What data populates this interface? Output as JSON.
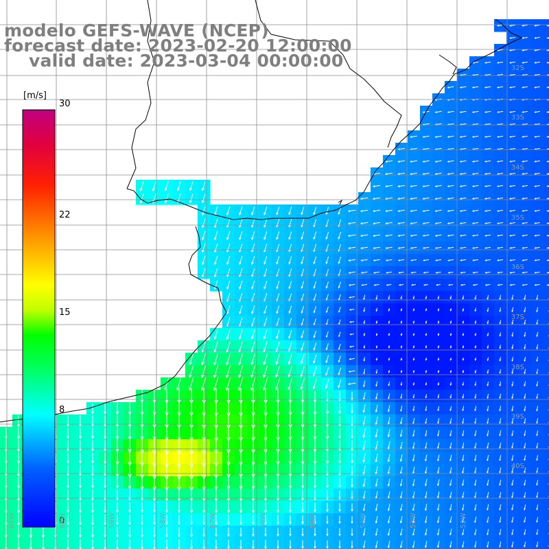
{
  "title": {
    "line1": "modelo GEFS-WAVE (NCEP)",
    "line2": "forecast date: 2023-02-20 12:00:00",
    "line3": "valid date: 2023-03-04 00:00:00"
  },
  "colorbar": {
    "unit": "[m/s]",
    "ticks": [
      {
        "label": "30",
        "value": 30
      },
      {
        "label": "22",
        "value": 22
      },
      {
        "label": "15",
        "value": 15
      },
      {
        "label": "8",
        "value": 8
      },
      {
        "label": "0",
        "value": 0
      }
    ],
    "range": [
      0,
      30
    ],
    "colors": [
      "#0000ff",
      "#00a0ff",
      "#00ffff",
      "#00ff00",
      "#ffff00",
      "#ff8000",
      "#ff0000",
      "#c00080"
    ]
  },
  "lat_labels": [
    "32S",
    "33S",
    "34S",
    "35S",
    "36S",
    "37S",
    "38S",
    "39S",
    "40S"
  ],
  "lon_labels": [
    "61W",
    "60W",
    "59W",
    "58W",
    "57W",
    "56W",
    "55W",
    "54W",
    "53W",
    "52W"
  ],
  "colors": {
    "land": "#ffffff",
    "coastline": "#000000",
    "grid": "#8c8c8c",
    "title_text": "#7f7f7f",
    "arrow": "#ffffff"
  },
  "map": {
    "variable": "wind speed",
    "domain": {
      "lon": [
        -61.5,
        -51
      ],
      "lat": [
        -41,
        -31
      ]
    }
  }
}
